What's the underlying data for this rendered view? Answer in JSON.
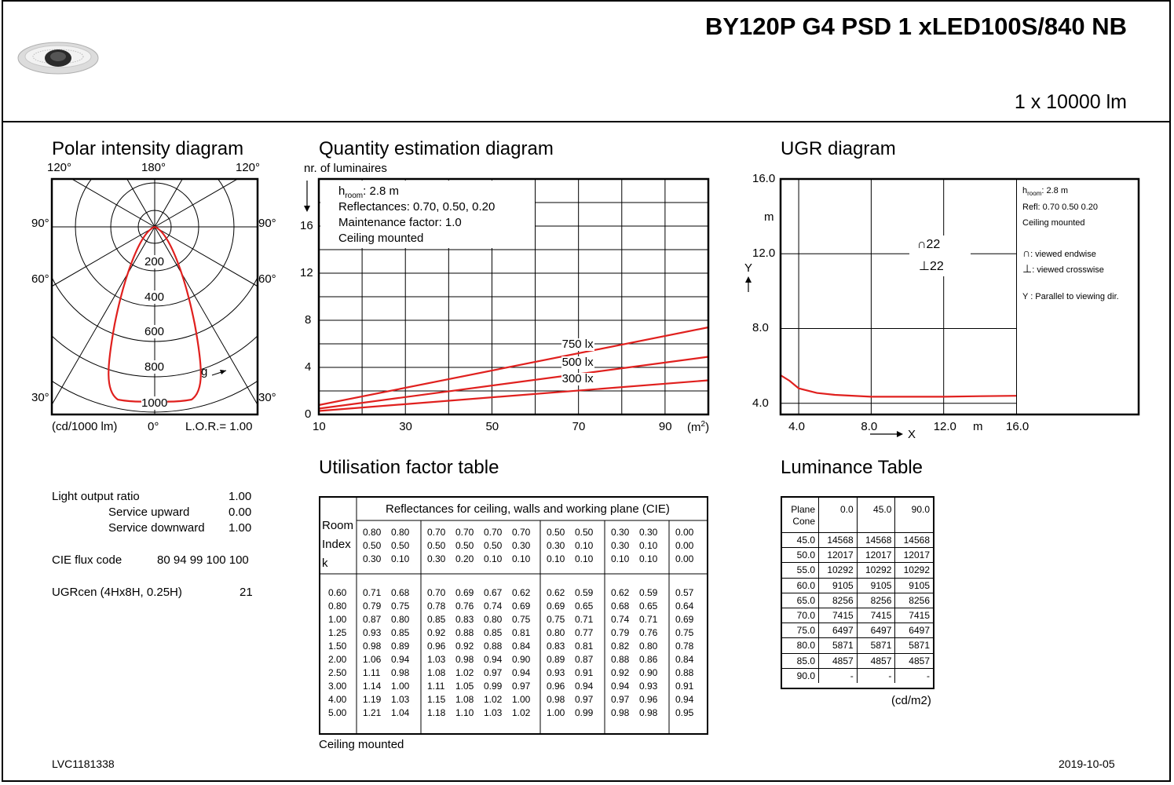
{
  "header": {
    "title": "BY120P G4 PSD 1 xLED100S/840 NB",
    "lumen": "1 x 10000 lm"
  },
  "polar": {
    "title": "Polar intensity diagram",
    "top_left": "120°",
    "top_center": "180°",
    "top_right": "120°",
    "l90": "90°",
    "r90": "90°",
    "l60": "60°",
    "r60": "60°",
    "l30": "30°",
    "r30": "30°",
    "rings": [
      "200",
      "400",
      "600",
      "800",
      "1000"
    ],
    "g_label": "g",
    "bottom_left": "(cd/1000 lm)",
    "bottom_center": "0°",
    "bottom_right": "L.O.R.= 1.00"
  },
  "quantity": {
    "title": "Quantity estimation diagram",
    "ylabel": "nr. of luminaires",
    "info": [
      "h<sub>room</sub>",
      ": 2.8 m"
    ],
    "info_room_prefix": "h",
    "info_room_sub": "room",
    "info_room_val": ": 2.8 m",
    "info_refl": "Reflectances: 0.70, 0.50, 0.20",
    "info_mf": "Maintenance factor: 1.0",
    "info_mount": "Ceiling mounted",
    "yticks": [
      "0",
      "4",
      "8",
      "12",
      "16"
    ],
    "xticks": [
      "10",
      "30",
      "50",
      "70",
      "90"
    ],
    "xunit": "(m",
    "xunit_sup": "2",
    "xunit_close": ")",
    "line_labels": [
      "750 lx",
      "500 lx",
      "300 lx"
    ]
  },
  "ugr": {
    "title": "UGR diagram",
    "yticks": [
      "16.0",
      "12.0",
      "8.0",
      "4.0"
    ],
    "ym": "m",
    "ylabel": "Y",
    "xticks": [
      "4.0",
      "8.0",
      "12.0",
      "16.0"
    ],
    "xm": "m",
    "xlabel": "X",
    "endwise_val": "22",
    "crosswise_val": "22",
    "legend_room_prefix": "h",
    "legend_room_sub": "room",
    "legend_room_val": ": 2.8 m",
    "legend_refl": "Refl: 0.70 0.50 0.20",
    "legend_mount": "Ceiling mounted",
    "legend_endwise": ": viewed endwise",
    "legend_crosswise": ": viewed crosswise",
    "legend_parallel": "Y  : Parallel to viewing dir."
  },
  "properties": {
    "lor_label": "Light output ratio",
    "lor_val": "1.00",
    "up_label": "Service upward",
    "up_val": "0.00",
    "down_label": "Service downward",
    "down_val": "1.00",
    "cie_label": "CIE flux code",
    "cie_val": "80 94 99 100 100",
    "ugr_label": "UGRcen (4Hx8H, 0.25H)",
    "ugr_val": "21"
  },
  "utilisation": {
    "title": "Utilisation factor table",
    "header": "Reflectances for ceiling, walls and working plane (CIE)",
    "room_index": [
      "Room",
      "Index",
      "k"
    ],
    "ceiling": [
      "0.80",
      "0.80",
      "0.70",
      "0.70",
      "0.70",
      "0.70",
      "0.50",
      "0.50",
      "0.30",
      "0.30",
      "0.00"
    ],
    "walls": [
      "0.50",
      "0.50",
      "0.50",
      "0.50",
      "0.50",
      "0.30",
      "0.30",
      "0.10",
      "0.30",
      "0.10",
      "0.00"
    ],
    "plane": [
      "0.30",
      "0.10",
      "0.30",
      "0.20",
      "0.10",
      "0.10",
      "0.10",
      "0.10",
      "0.10",
      "0.10",
      "0.00"
    ],
    "k": [
      "0.60",
      "0.80",
      "1.00",
      "1.25",
      "1.50",
      "2.00",
      "2.50",
      "3.00",
      "4.00",
      "5.00"
    ],
    "rows": [
      [
        "0.71",
        "0.68",
        "0.70",
        "0.69",
        "0.67",
        "0.62",
        "0.62",
        "0.59",
        "0.62",
        "0.59",
        "0.57"
      ],
      [
        "0.79",
        "0.75",
        "0.78",
        "0.76",
        "0.74",
        "0.69",
        "0.69",
        "0.65",
        "0.68",
        "0.65",
        "0.64"
      ],
      [
        "0.87",
        "0.80",
        "0.85",
        "0.83",
        "0.80",
        "0.75",
        "0.75",
        "0.71",
        "0.74",
        "0.71",
        "0.69"
      ],
      [
        "0.93",
        "0.85",
        "0.92",
        "0.88",
        "0.85",
        "0.81",
        "0.80",
        "0.77",
        "0.79",
        "0.76",
        "0.75"
      ],
      [
        "0.98",
        "0.89",
        "0.96",
        "0.92",
        "0.88",
        "0.84",
        "0.83",
        "0.81",
        "0.82",
        "0.80",
        "0.78"
      ],
      [
        "1.06",
        "0.94",
        "1.03",
        "0.98",
        "0.94",
        "0.90",
        "0.89",
        "0.87",
        "0.88",
        "0.86",
        "0.84"
      ],
      [
        "1.11",
        "0.98",
        "1.08",
        "1.02",
        "0.97",
        "0.94",
        "0.93",
        "0.91",
        "0.92",
        "0.90",
        "0.88"
      ],
      [
        "1.14",
        "1.00",
        "1.11",
        "1.05",
        "0.99",
        "0.97",
        "0.96",
        "0.94",
        "0.94",
        "0.93",
        "0.91"
      ],
      [
        "1.19",
        "1.03",
        "1.15",
        "1.08",
        "1.02",
        "1.00",
        "0.98",
        "0.97",
        "0.97",
        "0.96",
        "0.94"
      ],
      [
        "1.21",
        "1.04",
        "1.18",
        "1.10",
        "1.03",
        "1.02",
        "1.00",
        "0.99",
        "0.98",
        "0.98",
        "0.95"
      ]
    ],
    "footer": "Ceiling mounted"
  },
  "luminance": {
    "title": "Luminance Table",
    "head_plane": "Plane",
    "head_cone": "Cone",
    "cols": [
      "0.0",
      "45.0",
      "90.0"
    ],
    "rows": [
      [
        "45.0",
        "14568",
        "14568",
        "14568"
      ],
      [
        "50.0",
        "12017",
        "12017",
        "12017"
      ],
      [
        "55.0",
        "10292",
        "10292",
        "10292"
      ],
      [
        "60.0",
        "9105",
        "9105",
        "9105"
      ],
      [
        "65.0",
        "8256",
        "8256",
        "8256"
      ],
      [
        "70.0",
        "7415",
        "7415",
        "7415"
      ],
      [
        "75.0",
        "6497",
        "6497",
        "6497"
      ],
      [
        "80.0",
        "5871",
        "5871",
        "5871"
      ],
      [
        "85.0",
        "4857",
        "4857",
        "4857"
      ],
      [
        "90.0",
        "-",
        "-",
        "-"
      ]
    ],
    "unit": "(cd/m2)"
  },
  "footer": {
    "code": "LVC1181338",
    "date": "2019-10-05"
  },
  "chart_data": [
    {
      "type": "line",
      "title": "Quantity estimation diagram",
      "xlabel": "(m2)",
      "ylabel": "nr. of luminaires",
      "xlim": [
        10,
        100
      ],
      "ylim": [
        0,
        20
      ],
      "series": [
        {
          "name": "750 lx",
          "x": [
            10,
            100
          ],
          "y": [
            0.8,
            7.4
          ]
        },
        {
          "name": "500 lx",
          "x": [
            10,
            100
          ],
          "y": [
            0.5,
            4.9
          ]
        },
        {
          "name": "300 lx",
          "x": [
            10,
            100
          ],
          "y": [
            0.3,
            2.9
          ]
        }
      ]
    },
    {
      "type": "line",
      "title": "UGR diagram",
      "xlim": [
        3.0,
        16.0
      ],
      "ylim": [
        3.4,
        16.0
      ],
      "series": [
        {
          "x": [
            3.0,
            3.5,
            4.0,
            5.0,
            6.0,
            8.0,
            10.0,
            12.0,
            14.0,
            16.0
          ],
          "y": [
            5.5,
            5.2,
            4.8,
            4.55,
            4.45,
            4.35,
            4.35,
            4.35,
            4.38,
            4.4
          ]
        }
      ]
    }
  ]
}
